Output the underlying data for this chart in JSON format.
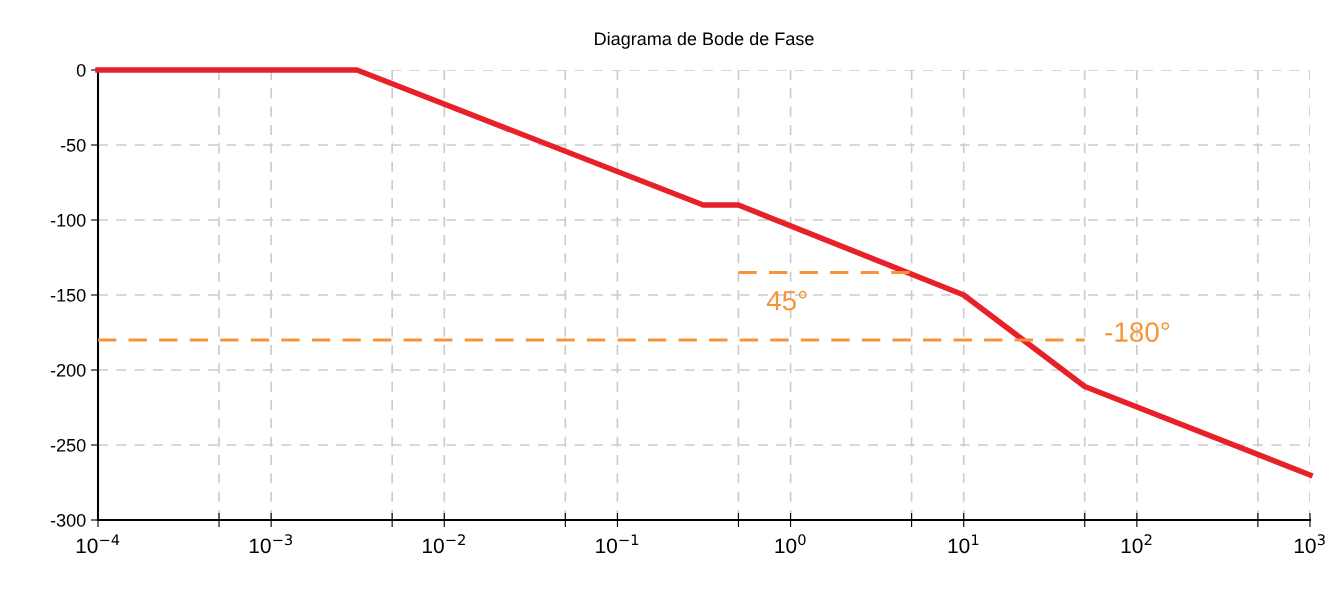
{
  "chart_data": {
    "type": "line",
    "title": "Diagrama de Bode de Fase",
    "log": "x",
    "series": [
      {
        "color": "#e8202a",
        "x": [
          0.0001,
          0.00313,
          0.313,
          0.5,
          10,
          50,
          1000
        ],
        "values": [
          0,
          0,
          -90,
          -90,
          -150,
          -211,
          -270
        ]
      },
      {
        "color": "#f7943a",
        "line_style": "dashed",
        "x": [
          0.5,
          5
        ],
        "values": [
          -135,
          -135
        ]
      },
      {
        "color": "#f7943a",
        "line_style": "dashed",
        "x": [
          0.0001,
          50
        ],
        "values": [
          -180,
          -180
        ]
      }
    ],
    "annotations": [
      "45°",
      "-180°"
    ],
    "xlim": [
      0.0001,
      1000
    ],
    "xticks": [
      {
        "value": 0.0001,
        "label": "10$^{−4}$"
      },
      {
        "value": 0.0005,
        "label": null
      },
      {
        "value": 0.001,
        "label": "10$^{−3}$"
      },
      {
        "value": 0.005,
        "label": null
      },
      {
        "value": 0.01,
        "label": "10$^{−2}$"
      },
      {
        "value": 0.05,
        "label": null
      },
      {
        "value": 0.1,
        "label": "10$^{−1}$"
      },
      {
        "value": 0.5,
        "label": null
      },
      {
        "value": 1,
        "label": "10$^{0}$"
      },
      {
        "value": 5,
        "label": null
      },
      {
        "value": 10,
        "label": "10$^{1}$"
      },
      {
        "value": 50,
        "label": null
      },
      {
        "value": 100,
        "label": "10$^{2}$"
      },
      {
        "value": 500,
        "label": null
      },
      {
        "value": 1000,
        "label": "10$^{3}$"
      }
    ],
    "ylim": [
      -300,
      0
    ],
    "yticks": [
      -300,
      -250,
      -200,
      -150,
      -100,
      -50,
      0
    ],
    "grid": true
  }
}
